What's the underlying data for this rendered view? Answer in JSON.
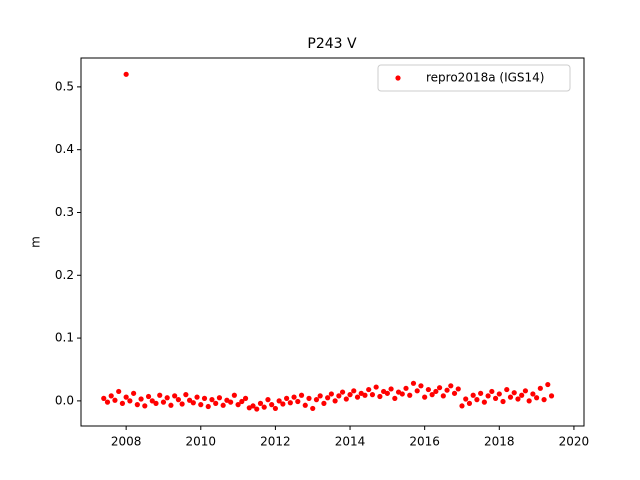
{
  "chart_data": {
    "type": "scatter",
    "title": "P243 V",
    "ylabel": "m",
    "xlim": [
      2006.79,
      2020.27
    ],
    "ylim": [
      -0.04,
      0.546
    ],
    "xticks": [
      2008,
      2010,
      2012,
      2014,
      2016,
      2018,
      2020
    ],
    "yticks": [
      {
        "value": 0,
        "label": "0.0"
      },
      0.1,
      0.2,
      0.3,
      0.4,
      0.5
    ],
    "legend": "upper right",
    "series": [
      {
        "name": "repro2018a (IGS14)",
        "color": "#ff0000",
        "x": [
          2007.4,
          2007.5,
          2007.6,
          2007.7,
          2007.8,
          2007.9,
          2008.0,
          2008.1,
          2008.2,
          2008.3,
          2008.4,
          2008.5,
          2008.6,
          2008.7,
          2008.8,
          2008.9,
          2009.0,
          2009.1,
          2009.2,
          2009.3,
          2009.4,
          2009.5,
          2009.6,
          2009.7,
          2009.8,
          2009.9,
          2010.0,
          2010.1,
          2010.2,
          2010.3,
          2010.4,
          2010.5,
          2010.6,
          2010.7,
          2010.8,
          2010.9,
          2011.0,
          2011.1,
          2011.2,
          2011.3,
          2011.4,
          2011.5,
          2011.6,
          2011.7,
          2011.8,
          2011.9,
          2012.0,
          2012.1,
          2012.2,
          2012.3,
          2012.4,
          2012.5,
          2012.6,
          2012.7,
          2012.8,
          2012.9,
          2013.0,
          2013.1,
          2013.2,
          2013.3,
          2013.4,
          2013.5,
          2013.6,
          2013.7,
          2013.8,
          2013.9,
          2014.0,
          2014.1,
          2014.2,
          2014.3,
          2014.4,
          2014.5,
          2014.6,
          2014.7,
          2014.8,
          2014.9,
          2015.0,
          2015.1,
          2015.2,
          2015.3,
          2015.4,
          2015.5,
          2015.6,
          2015.7,
          2015.8,
          2015.9,
          2016.0,
          2016.1,
          2016.2,
          2016.3,
          2016.4,
          2016.5,
          2016.6,
          2016.7,
          2016.8,
          2016.9,
          2017.0,
          2017.1,
          2017.2,
          2017.3,
          2017.4,
          2017.5,
          2017.6,
          2017.7,
          2017.8,
          2017.9,
          2018.0,
          2018.1,
          2018.2,
          2018.3,
          2018.4,
          2018.5,
          2018.6,
          2018.7,
          2018.8,
          2018.9,
          2019.0,
          2019.1,
          2019.2,
          2019.3,
          2019.4,
          2008.0
        ],
        "values": [
          0.004,
          -0.002,
          0.008,
          0.001,
          0.015,
          -0.004,
          0.006,
          0.0,
          0.012,
          -0.006,
          0.003,
          -0.008,
          0.007,
          0.0,
          -0.004,
          0.009,
          -0.002,
          0.005,
          -0.007,
          0.008,
          0.002,
          -0.005,
          0.01,
          0.001,
          -0.003,
          0.006,
          -0.006,
          0.004,
          -0.009,
          0.002,
          -0.004,
          0.005,
          -0.007,
          0.001,
          -0.002,
          0.009,
          -0.006,
          -0.001,
          0.004,
          -0.011,
          -0.008,
          -0.013,
          -0.004,
          -0.01,
          0.002,
          -0.006,
          -0.012,
          0.0,
          -0.005,
          0.004,
          -0.003,
          0.006,
          -0.001,
          0.009,
          -0.007,
          0.004,
          -0.012,
          0.002,
          0.008,
          -0.004,
          0.005,
          0.011,
          0.0,
          0.008,
          0.014,
          0.003,
          0.01,
          0.016,
          0.006,
          0.012,
          0.009,
          0.018,
          0.01,
          0.022,
          0.007,
          0.015,
          0.012,
          0.019,
          0.004,
          0.014,
          0.011,
          0.02,
          0.009,
          0.028,
          0.016,
          0.024,
          0.006,
          0.018,
          0.01,
          0.015,
          0.021,
          0.008,
          0.017,
          0.024,
          0.012,
          0.019,
          -0.008,
          0.003,
          -0.004,
          0.009,
          0.002,
          0.012,
          -0.002,
          0.008,
          0.015,
          0.004,
          0.011,
          -0.001,
          0.018,
          0.006,
          0.013,
          0.003,
          0.009,
          0.016,
          0.0,
          0.011,
          0.005,
          0.02,
          0.002,
          0.026,
          0.008,
          0.52
        ]
      }
    ]
  }
}
